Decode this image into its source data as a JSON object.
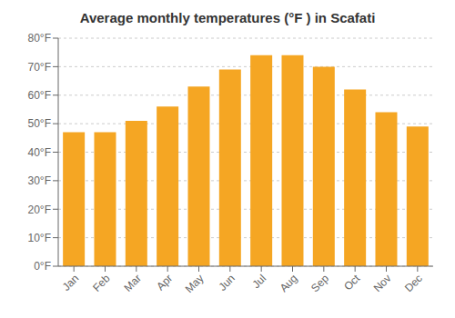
{
  "chart_data": {
    "type": "bar",
    "title": "Average monthly temperatures (°F ) in Scafati",
    "categories": [
      "Jan",
      "Feb",
      "Mar",
      "Apr",
      "May",
      "Jun",
      "Jul",
      "Aug",
      "Sep",
      "Oct",
      "Nov",
      "Dec"
    ],
    "values": [
      47,
      47,
      51,
      56,
      63,
      69,
      74,
      74,
      70,
      62,
      54,
      49
    ],
    "color": "#F5A623",
    "ylim": [
      0,
      80
    ],
    "yticks": [
      {
        "value": 0,
        "label": "0°F"
      },
      {
        "value": 10,
        "label": "10°F"
      },
      {
        "value": 20,
        "label": "20°F"
      },
      {
        "value": 30,
        "label": "30°F"
      },
      {
        "value": 40,
        "label": "40°F"
      },
      {
        "value": 50,
        "label": "50°F"
      },
      {
        "value": 60,
        "label": "60°F"
      },
      {
        "value": 70,
        "label": "70°F"
      },
      {
        "value": 80,
        "label": "80°F"
      }
    ],
    "grid": true
  }
}
